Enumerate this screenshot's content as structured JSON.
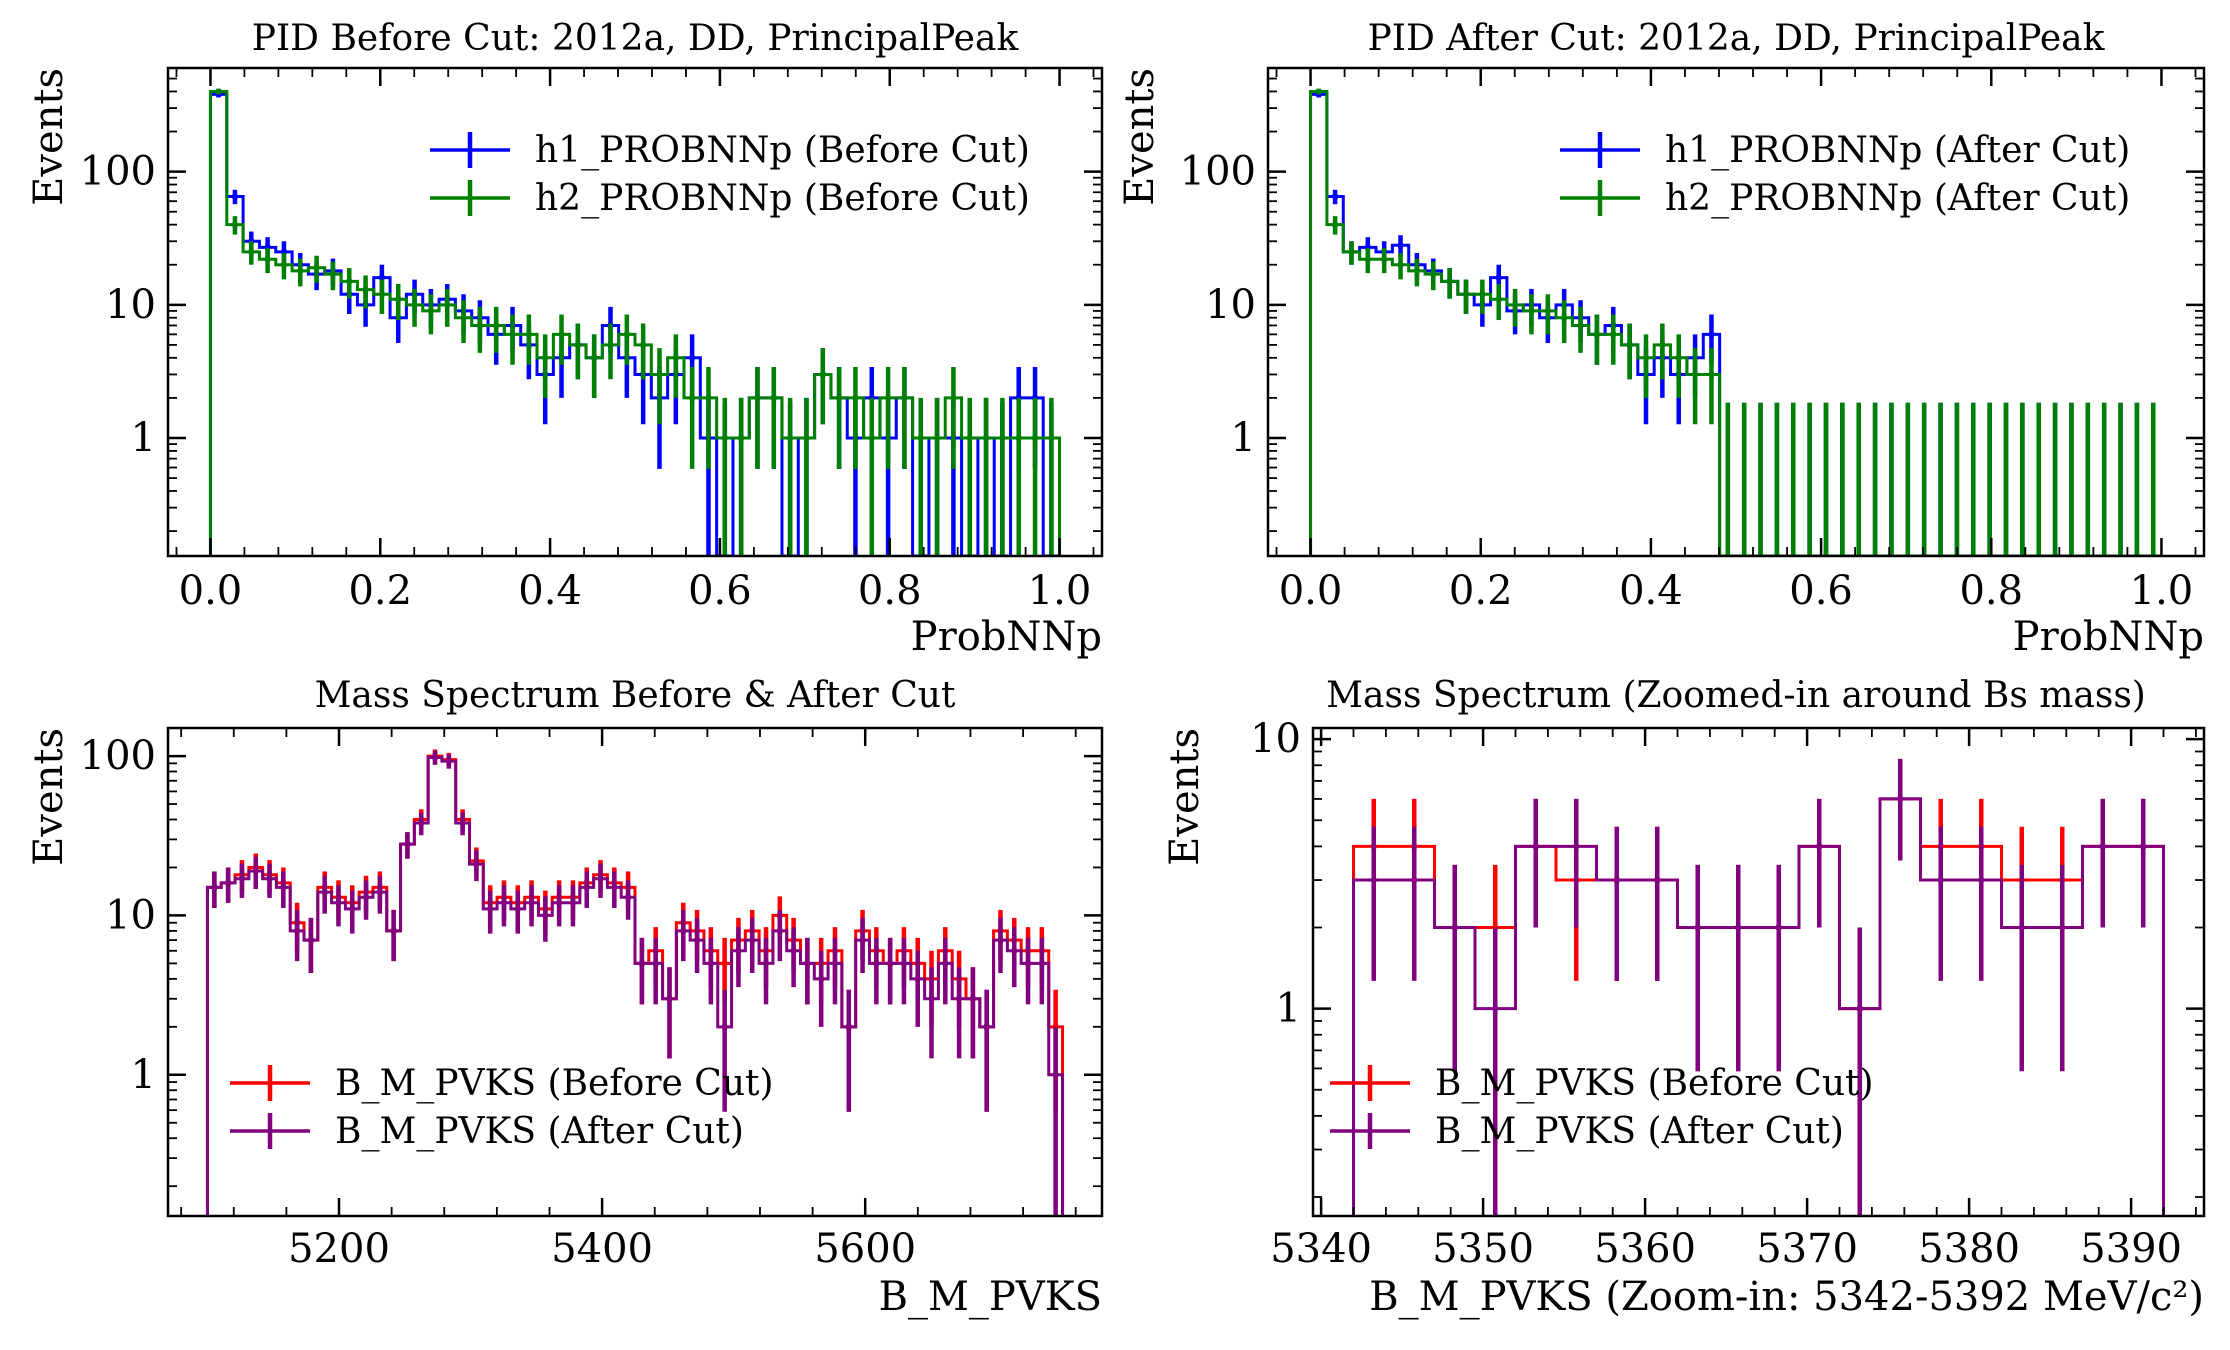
{
  "colors": {
    "h1": "#0000ff",
    "h2": "#008000",
    "before": "#ff0000",
    "after": "#800080",
    "axis": "#000000",
    "background": "#ffffff"
  },
  "chart_data": [
    {
      "type": "histogram-step",
      "title": "PID Before Cut: 2012a, DD, PrincipalPeak",
      "xlabel": "ProbNNp",
      "ylabel": "Events",
      "yscale": "log",
      "xlim": [
        -0.05,
        1.05
      ],
      "ylim": [
        0.13,
        600
      ],
      "xticks": [
        0.0,
        0.2,
        0.4,
        0.6,
        0.8,
        1.0
      ],
      "xtick_labels": [
        "0.0",
        "0.2",
        "0.4",
        "0.6",
        "0.8",
        "1.0"
      ],
      "yticks": [
        1,
        10,
        100
      ],
      "ytick_labels": [
        "1",
        "10",
        "100"
      ],
      "legend_position": "top-right",
      "bin_range": [
        0,
        1
      ],
      "series": [
        {
          "name": "h1_PROBNNp (Before Cut)",
          "color": "h1",
          "values": [
            380,
            65,
            30,
            27,
            25,
            20,
            17,
            18,
            12,
            10,
            16,
            8,
            12,
            10,
            11,
            9,
            8,
            6,
            7,
            5,
            3,
            4,
            5,
            4,
            7,
            4,
            3,
            2,
            3,
            4,
            1,
            0,
            1,
            2,
            2,
            0,
            1,
            3,
            2,
            1,
            2,
            1,
            2,
            0,
            1,
            1,
            0,
            1,
            0,
            2,
            2,
            0
          ]
        },
        {
          "name": "h2_PROBNNp (Before Cut)",
          "color": "h2",
          "values": [
            400,
            40,
            25,
            22,
            20,
            18,
            19,
            17,
            15,
            13,
            12,
            11,
            10,
            9,
            10,
            8,
            7,
            7,
            6,
            6,
            4,
            6,
            5,
            4,
            5,
            6,
            5,
            3,
            4,
            2,
            2,
            1,
            1,
            2,
            2,
            1,
            1,
            3,
            2,
            2,
            1,
            2,
            2,
            1,
            1,
            2,
            1,
            1,
            1,
            1,
            1,
            1
          ]
        }
      ]
    },
    {
      "type": "histogram-step",
      "title": "PID After Cut: 2012a, DD, PrincipalPeak",
      "xlabel": "ProbNNp",
      "ylabel": "Events",
      "yscale": "log",
      "xlim": [
        -0.05,
        1.05
      ],
      "ylim": [
        0.13,
        600
      ],
      "xticks": [
        0.0,
        0.2,
        0.4,
        0.6,
        0.8,
        1.0
      ],
      "xtick_labels": [
        "0.0",
        "0.2",
        "0.4",
        "0.6",
        "0.8",
        "1.0"
      ],
      "yticks": [
        1,
        10,
        100
      ],
      "ytick_labels": [
        "1",
        "10",
        "100"
      ],
      "legend_position": "top-right",
      "bin_range": [
        0,
        1
      ],
      "series": [
        {
          "name": "h1_PROBNNp (After Cut)",
          "color": "h1",
          "values": [
            380,
            65,
            25,
            27,
            25,
            28,
            20,
            18,
            15,
            12,
            10,
            16,
            9,
            10,
            8,
            10,
            8,
            6,
            7,
            5,
            3,
            4,
            3,
            4,
            6,
            0,
            0,
            0,
            0,
            0,
            0,
            0,
            0,
            0,
            0,
            0,
            0,
            0,
            0,
            0,
            0,
            0,
            0,
            0,
            0,
            0,
            0,
            0,
            0,
            0,
            0,
            0
          ]
        },
        {
          "name": "h2_PROBNNp (After Cut)",
          "color": "h2",
          "values": [
            400,
            40,
            25,
            22,
            22,
            20,
            18,
            17,
            15,
            12,
            12,
            11,
            10,
            9,
            9,
            8,
            7,
            6,
            6,
            5,
            4,
            5,
            4,
            3,
            3,
            0,
            0,
            0,
            0,
            0,
            0,
            0,
            0,
            0,
            0,
            0,
            0,
            0,
            0,
            0,
            0,
            0,
            0,
            0,
            0,
            0,
            0,
            0,
            0,
            0,
            0,
            0
          ]
        }
      ]
    },
    {
      "type": "histogram-step",
      "title": "Mass Spectrum Before & After Cut",
      "xlabel": "B_M_PVKS",
      "ylabel": "Events",
      "yscale": "log",
      "xlim": [
        5070,
        5780
      ],
      "ylim": [
        0.13,
        150
      ],
      "xticks": [
        5200,
        5400,
        5600
      ],
      "xtick_labels": [
        "5200",
        "5400",
        "5600"
      ],
      "yticks": [
        1,
        10,
        100
      ],
      "ytick_labels": [
        "1",
        "10",
        "100"
      ],
      "legend_position": "bottom-left",
      "bin_range": [
        5100,
        5750
      ],
      "series": [
        {
          "name": "B_M_PVKS (Before Cut)",
          "color": "before",
          "values": [
            15,
            16,
            18,
            20,
            18,
            16,
            9,
            7,
            15,
            13,
            12,
            14,
            15,
            8,
            28,
            40,
            100,
            95,
            40,
            22,
            12,
            13,
            12,
            13,
            11,
            13,
            13,
            16,
            18,
            16,
            15,
            5,
            6,
            3,
            9,
            8,
            6,
            5,
            7,
            8,
            6,
            10,
            7,
            5,
            5,
            6,
            2,
            8,
            6,
            5,
            6,
            5,
            4,
            6,
            4,
            3,
            2,
            8,
            7,
            6,
            6,
            2
          ]
        },
        {
          "name": "B_M_PVKS (After Cut)",
          "color": "after",
          "values": [
            15,
            16,
            17,
            19,
            17,
            15,
            8,
            7,
            14,
            12,
            11,
            13,
            14,
            8,
            28,
            38,
            98,
            93,
            38,
            21,
            11,
            12,
            11,
            12,
            10,
            12,
            12,
            15,
            17,
            15,
            13,
            5,
            5,
            3,
            8,
            7,
            5,
            2,
            6,
            7,
            5,
            8,
            6,
            5,
            4,
            5,
            2,
            7,
            5,
            5,
            5,
            4,
            3,
            5,
            3,
            3,
            2,
            7,
            6,
            5,
            5,
            1
          ]
        }
      ]
    },
    {
      "type": "histogram-step",
      "title": "Mass Spectrum (Zoomed-in around Bs mass)",
      "xlabel": "B_M_PVKS (Zoom-in: 5342-5392 MeV/c²)",
      "ylabel": "Events",
      "yscale": "log",
      "xlim": [
        5339.5,
        5394.5
      ],
      "ylim": [
        0.17,
        11
      ],
      "xticks": [
        5340,
        5350,
        5360,
        5370,
        5380,
        5390
      ],
      "xtick_labels": [
        "5340",
        "5350",
        "5360",
        "5370",
        "5380",
        "5390"
      ],
      "yticks": [
        1,
        10
      ],
      "ytick_labels": [
        "1",
        "10"
      ],
      "legend_position": "bottom-left",
      "bin_range": [
        5342,
        5392
      ],
      "series": [
        {
          "name": "B_M_PVKS (Before Cut)",
          "color": "before",
          "values": [
            4,
            4,
            2,
            2,
            4,
            3,
            3,
            3,
            2,
            2,
            2,
            4,
            1,
            6,
            4,
            4,
            3,
            3,
            4,
            4
          ]
        },
        {
          "name": "B_M_PVKS (After Cut)",
          "color": "after",
          "values": [
            3,
            3,
            2,
            1,
            4,
            4,
            3,
            3,
            2,
            2,
            2,
            4,
            1,
            6,
            3,
            3,
            2,
            2,
            4,
            4
          ]
        }
      ]
    }
  ]
}
